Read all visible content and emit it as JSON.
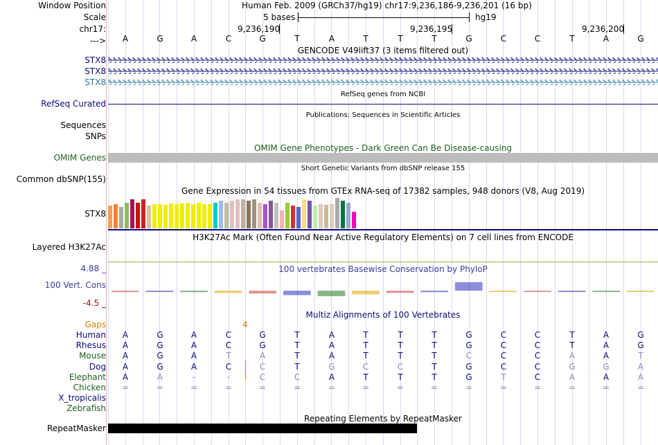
{
  "colors": {
    "navy": "#0a0a7a",
    "green": "#1e5e1e",
    "orange": "#d88000",
    "grey": "#bcbcbc",
    "teal": "#2a7aa0",
    "conservation": "#3a3aa0",
    "darkred": "#8a1a1a"
  },
  "header": {
    "window_position_label": "Window Position",
    "scale_label": "Scale",
    "chr_label": "chr17:",
    "strand_label": "--->",
    "position_text": "Human Feb. 2009 (GRCh37/hg19)   chr17:9,236,186-9,236,201 (16 bp)",
    "scale_text": "5 bases",
    "assembly": "hg19",
    "coord_labels": [
      "9,236,190",
      "9,236,195",
      "9,236,200"
    ]
  },
  "sequence": [
    "A",
    "G",
    "A",
    "C",
    "G",
    "T",
    "A",
    "T",
    "T",
    "T",
    "G",
    "C",
    "C",
    "T",
    "A",
    "G"
  ],
  "gencode": {
    "title": "GENCODE V49lift37 (3 items filtered out)",
    "tracks": [
      "STX8",
      "STX8",
      "STX8"
    ]
  },
  "refseq": {
    "title": "RefSeq genes from NCBI",
    "label": "RefSeq Curated"
  },
  "publications": {
    "title": "Publications: Sequences in Scientific Articles",
    "labels": [
      "Sequences",
      "SNPs"
    ]
  },
  "omim": {
    "title": "OMIM Gene Phenotypes - Dark Green Can Be Disease-causing",
    "label": "OMIM Genes"
  },
  "dbsnp": {
    "title": "Short Genetic Variants from dbSNP release 155",
    "label": "Common dbSNP(155)"
  },
  "gtex": {
    "title": "Gene Expression in 54 tissues from GTEx RNA-seq of 17382 samples, 948 donors (V8, Aug 2019)",
    "label": "STX8",
    "bars": [
      {
        "v": 0.75,
        "c": "#f0a050"
      },
      {
        "v": 0.8,
        "c": "#ff7f2a"
      },
      {
        "v": 0.7,
        "c": "#aaaaaa"
      },
      {
        "v": 0.85,
        "c": "#8fbc5a"
      },
      {
        "v": 0.95,
        "c": "#a01060"
      },
      {
        "v": 0.85,
        "c": "#cc1010"
      },
      {
        "v": 0.95,
        "c": "#cc2222"
      },
      {
        "v": 0.75,
        "c": "#e0c0a0"
      },
      {
        "v": 0.8,
        "c": "#eeee00"
      },
      {
        "v": 0.8,
        "c": "#eeee00"
      },
      {
        "v": 0.78,
        "c": "#eeee00"
      },
      {
        "v": 0.82,
        "c": "#eeee00"
      },
      {
        "v": 0.8,
        "c": "#eeee00"
      },
      {
        "v": 0.82,
        "c": "#eeee00"
      },
      {
        "v": 0.85,
        "c": "#eeee00"
      },
      {
        "v": 0.8,
        "c": "#eeee00"
      },
      {
        "v": 0.85,
        "c": "#eeee00"
      },
      {
        "v": 0.8,
        "c": "#eeee00"
      },
      {
        "v": 0.8,
        "c": "#eeee00"
      },
      {
        "v": 0.85,
        "c": "#00cccc"
      },
      {
        "v": 0.9,
        "c": "#99bbee"
      },
      {
        "v": 0.85,
        "c": "#c0c0a0"
      },
      {
        "v": 0.9,
        "c": "#ddc0c0"
      },
      {
        "v": 0.95,
        "c": "#ddc0c0"
      },
      {
        "v": 0.95,
        "c": "#c0b0a0"
      },
      {
        "v": 0.9,
        "c": "#887755"
      },
      {
        "v": 0.95,
        "c": "#a09080"
      },
      {
        "v": 0.85,
        "c": "#ddc0b0"
      },
      {
        "v": 0.8,
        "c": "#aa55cc"
      },
      {
        "v": 0.9,
        "c": "#885599"
      },
      {
        "v": 0.85,
        "c": "#c0c0c0"
      },
      {
        "v": 0.6,
        "c": "#ffb0b0"
      },
      {
        "v": 0.85,
        "c": "#99cc33"
      },
      {
        "v": 0.75,
        "c": "#cc3333"
      },
      {
        "v": 0.7,
        "c": "#5566cc"
      },
      {
        "v": 0.95,
        "c": "#ffdd88"
      },
      {
        "v": 0.9,
        "c": "#7755aa"
      },
      {
        "v": 0.75,
        "c": "#bbeeaa"
      },
      {
        "v": 0.8,
        "c": "#ddccbb"
      },
      {
        "v": 0.78,
        "c": "#ccbb99"
      },
      {
        "v": 0.8,
        "c": "#ddccbb"
      },
      {
        "v": 1.0,
        "c": "#aaaaaa"
      },
      {
        "v": 0.9,
        "c": "#007744"
      },
      {
        "v": 0.85,
        "c": "#99aacc"
      },
      {
        "v": 0.55,
        "c": "#ff00bb"
      }
    ]
  },
  "h3k27ac": {
    "title": "H3K27Ac Mark (Often Found Near Active Regulatory Elements) on 7 cell lines from ENCODE",
    "label": "Layered H3K27Ac"
  },
  "conservation": {
    "title": "100 vertebrates Basewise Conservation by PhyloP",
    "label": "100 Vert. Cons",
    "max": "4.88 _",
    "min": "-4.5 _",
    "scores": [
      -0.4,
      -0.3,
      -0.4,
      -0.6,
      -0.8,
      -1.2,
      -1.5,
      -1.0,
      -0.6,
      -0.4,
      2.5,
      -0.3,
      -0.2,
      -0.2,
      -0.3,
      -0.2
    ]
  },
  "multiz": {
    "title": "Multiz Alignments of 100 Vertebrates",
    "gaps_label": "Gaps",
    "gap_count": "4",
    "species": [
      {
        "name": "Human",
        "bases": [
          "A",
          "G",
          "A",
          "C",
          "G",
          "T",
          "A",
          "T",
          "T",
          "T",
          "G",
          "C",
          "C",
          "T",
          "A",
          "G"
        ]
      },
      {
        "name": "Rhesus",
        "bases": [
          "A",
          "G",
          "A",
          "C",
          "G",
          "T",
          "A",
          "T",
          "T",
          "T",
          "G",
          "C",
          "C",
          "T",
          "A",
          "G"
        ]
      },
      {
        "name": "Mouse",
        "bases": [
          "A",
          "G",
          "A",
          "T",
          "A",
          "T",
          "A",
          "T",
          "T",
          "T",
          "C",
          "C",
          "C",
          "A",
          "A",
          "T"
        ]
      },
      {
        "name": "Dog",
        "bases": [
          "A",
          "G",
          "A",
          "C",
          "C",
          "T",
          "G",
          "C",
          "C",
          "T",
          "G",
          "C",
          "C",
          "G",
          "G",
          "A"
        ]
      },
      {
        "name": "Elephant",
        "bases": [
          "A",
          "A",
          "-",
          "-",
          "C",
          "C",
          "A",
          "T",
          "T",
          "T",
          "G",
          "T",
          "C",
          "A",
          "A",
          "A"
        ]
      },
      {
        "name": "Chicken",
        "bases": [
          "=",
          "=",
          "=",
          "=",
          "=",
          "=",
          "=",
          "=",
          "=",
          "=",
          "=",
          "=",
          "=",
          "=",
          "=",
          "="
        ]
      },
      {
        "name": "X_tropicalis",
        "bases": []
      },
      {
        "name": "Zebrafish",
        "bases": []
      }
    ]
  },
  "repeatmasker": {
    "title": "Repeating Elements by RepeatMasker",
    "label": "RepeatMasker"
  }
}
